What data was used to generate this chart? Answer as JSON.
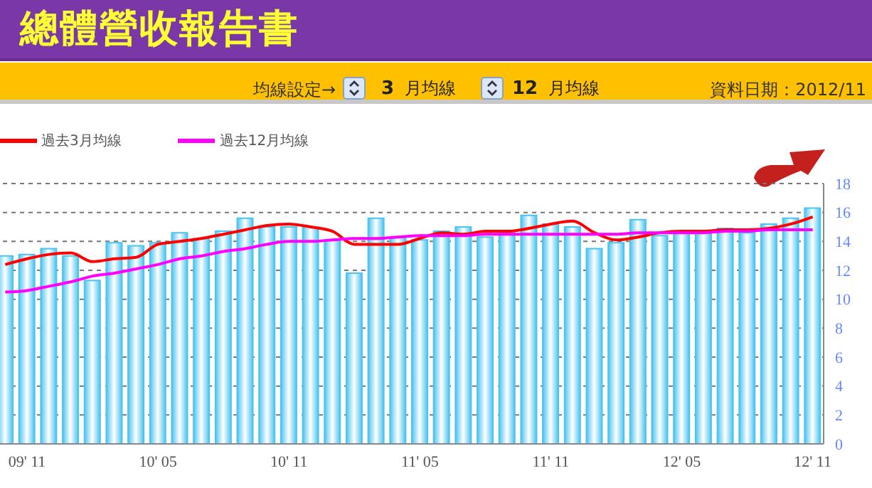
{
  "chart_data": {
    "type": "bar",
    "title": "總體營收報告書",
    "annotations": [
      "均線設定→",
      "3 月均線",
      "12 月均線",
      "資料日期：2012/11"
    ],
    "categories": [
      null,
      "09' 11",
      null,
      null,
      null,
      null,
      null,
      "10' 05",
      null,
      null,
      null,
      null,
      null,
      "10' 11",
      null,
      null,
      null,
      null,
      null,
      "11' 05",
      null,
      null,
      null,
      null,
      null,
      "11' 11",
      null,
      null,
      null,
      null,
      null,
      "12' 05",
      null,
      null,
      null,
      null,
      null,
      "12' 11"
    ],
    "series": [
      {
        "color": "#4cc4f0",
        "values": [
          13.0,
          13.1,
          13.5,
          13.0,
          11.3,
          13.9,
          13.7,
          13.9,
          14.6,
          14.2,
          14.7,
          15.6,
          15.0,
          15.0,
          15.0,
          14.1,
          11.8,
          15.6,
          14.3,
          14.1,
          14.7,
          15.0,
          14.3,
          14.6,
          15.8,
          15.2,
          15.0,
          13.5,
          13.9,
          15.5,
          14.4,
          14.6,
          14.6,
          14.9,
          14.6,
          15.2,
          15.6,
          16.3
        ]
      },
      {
        "type": "line",
        "name": "過去3月均線",
        "color": "#ff0000",
        "values": [
          12.4,
          12.8,
          13.1,
          13.2,
          12.6,
          12.8,
          12.9,
          13.8,
          14.0,
          14.2,
          14.5,
          14.8,
          15.1,
          15.2,
          15.0,
          14.7,
          13.8,
          13.8,
          13.8,
          14.2,
          14.6,
          14.5,
          14.7,
          14.7,
          14.9,
          15.2,
          15.4,
          14.6,
          14.1,
          14.3,
          14.6,
          14.7,
          14.7,
          14.8,
          14.8,
          14.9,
          15.2,
          15.7
        ]
      },
      {
        "type": "line",
        "name": "過去12月均線",
        "color": "#ff00ff",
        "values": [
          10.5,
          10.6,
          10.9,
          11.2,
          11.6,
          11.8,
          12.1,
          12.4,
          12.8,
          13.0,
          13.3,
          13.5,
          13.8,
          14.0,
          14.0,
          14.1,
          14.2,
          14.2,
          14.3,
          14.4,
          14.4,
          14.4,
          14.5,
          14.5,
          14.5,
          14.5,
          14.5,
          14.5,
          14.5,
          14.6,
          14.6,
          14.6,
          14.6,
          14.7,
          14.7,
          14.8,
          14.8,
          14.8
        ]
      }
    ],
    "ylim": [
      0,
      18
    ],
    "yticks": [
      0,
      2,
      4,
      6,
      8,
      10,
      12,
      14,
      16,
      18
    ],
    "grid": "y",
    "legend": "top left",
    "marker": "none",
    "line_style": "solid"
  }
}
